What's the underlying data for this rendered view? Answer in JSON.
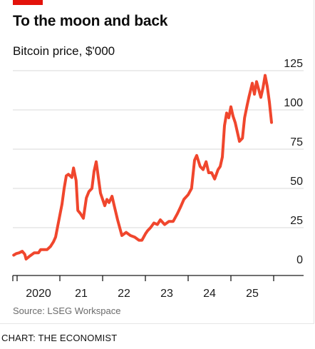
{
  "title": "To the moon and back",
  "subtitle": "Bitcoin price, $'000",
  "source": "Source: LSEG Workspace",
  "credit": "CHART: THE ECONOMIST",
  "colors": {
    "accent": "#e3120b",
    "line": "#f0462d",
    "grid": "#d9d9d9",
    "axis": "#1a1a1a"
  },
  "chart_data": {
    "type": "line",
    "title": "To the moon and back",
    "ylabel": "Bitcoin price, $'000",
    "xlabel": "",
    "ylim": [
      0,
      125
    ],
    "xlim": [
      2019.9,
      2026.0
    ],
    "grid": true,
    "y_axis_side": "right",
    "y_ticks": [
      0,
      25,
      50,
      75,
      100,
      125
    ],
    "x_tick_labels": [
      {
        "x": 2020.5,
        "label": "2020"
      },
      {
        "x": 2021.5,
        "label": "21"
      },
      {
        "x": 2022.5,
        "label": "22"
      },
      {
        "x": 2023.5,
        "label": "23"
      },
      {
        "x": 2024.5,
        "label": "24"
      },
      {
        "x": 2025.5,
        "label": "25"
      }
    ],
    "x_boundaries": [
      2020,
      2021,
      2022,
      2023,
      2024,
      2025,
      2026
    ],
    "series": [
      {
        "x": [
          2019.92,
          2019.98,
          2020.05,
          2020.12,
          2020.18,
          2020.21,
          2020.3,
          2020.4,
          2020.5,
          2020.55,
          2020.62,
          2020.7,
          2020.78,
          2020.85,
          2020.9,
          2020.95,
          2021.0,
          2021.05,
          2021.1,
          2021.15,
          2021.2,
          2021.28,
          2021.32,
          2021.38,
          2021.42,
          2021.48,
          2021.55,
          2021.62,
          2021.68,
          2021.75,
          2021.8,
          2021.85,
          2021.9,
          2021.95,
          2022.0,
          2022.05,
          2022.1,
          2022.15,
          2022.22,
          2022.28,
          2022.35,
          2022.45,
          2022.55,
          2022.65,
          2022.75,
          2022.85,
          2022.92,
          2023.0,
          2023.05,
          2023.12,
          2023.2,
          2023.28,
          2023.35,
          2023.45,
          2023.55,
          2023.65,
          2023.75,
          2023.82,
          2023.9,
          2024.0,
          2024.08,
          2024.15,
          2024.2,
          2024.28,
          2024.35,
          2024.42,
          2024.48,
          2024.55,
          2024.62,
          2024.7,
          2024.75,
          2024.8,
          2024.85,
          2024.9,
          2024.95,
          2025.0,
          2025.05,
          2025.1,
          2025.15,
          2025.2,
          2025.27,
          2025.32,
          2025.38,
          2025.42,
          2025.5,
          2025.55,
          2025.6,
          2025.65,
          2025.7,
          2025.75,
          2025.8,
          2025.85,
          2025.9,
          2025.95
        ],
        "y": [
          7.5,
          8.5,
          9,
          10,
          8,
          5,
          7,
          9,
          9,
          11,
          11,
          11,
          13,
          16,
          19,
          26,
          33,
          40,
          50,
          58,
          59,
          57,
          63,
          55,
          36,
          34,
          31,
          44,
          48,
          50,
          61,
          67,
          57,
          47,
          43,
          39,
          43,
          41,
          45,
          38,
          30,
          20,
          22,
          20,
          19,
          17,
          17,
          21,
          23,
          25,
          28,
          27,
          30,
          27,
          29,
          29,
          34,
          38,
          43,
          46,
          50,
          68,
          71,
          64,
          62,
          67,
          60,
          60,
          56,
          62,
          64,
          70,
          90,
          98,
          95,
          102,
          96,
          92,
          86,
          80,
          82,
          95,
          103,
          108,
          117,
          110,
          118,
          113,
          108,
          114,
          122,
          115,
          105,
          92
        ]
      }
    ]
  }
}
